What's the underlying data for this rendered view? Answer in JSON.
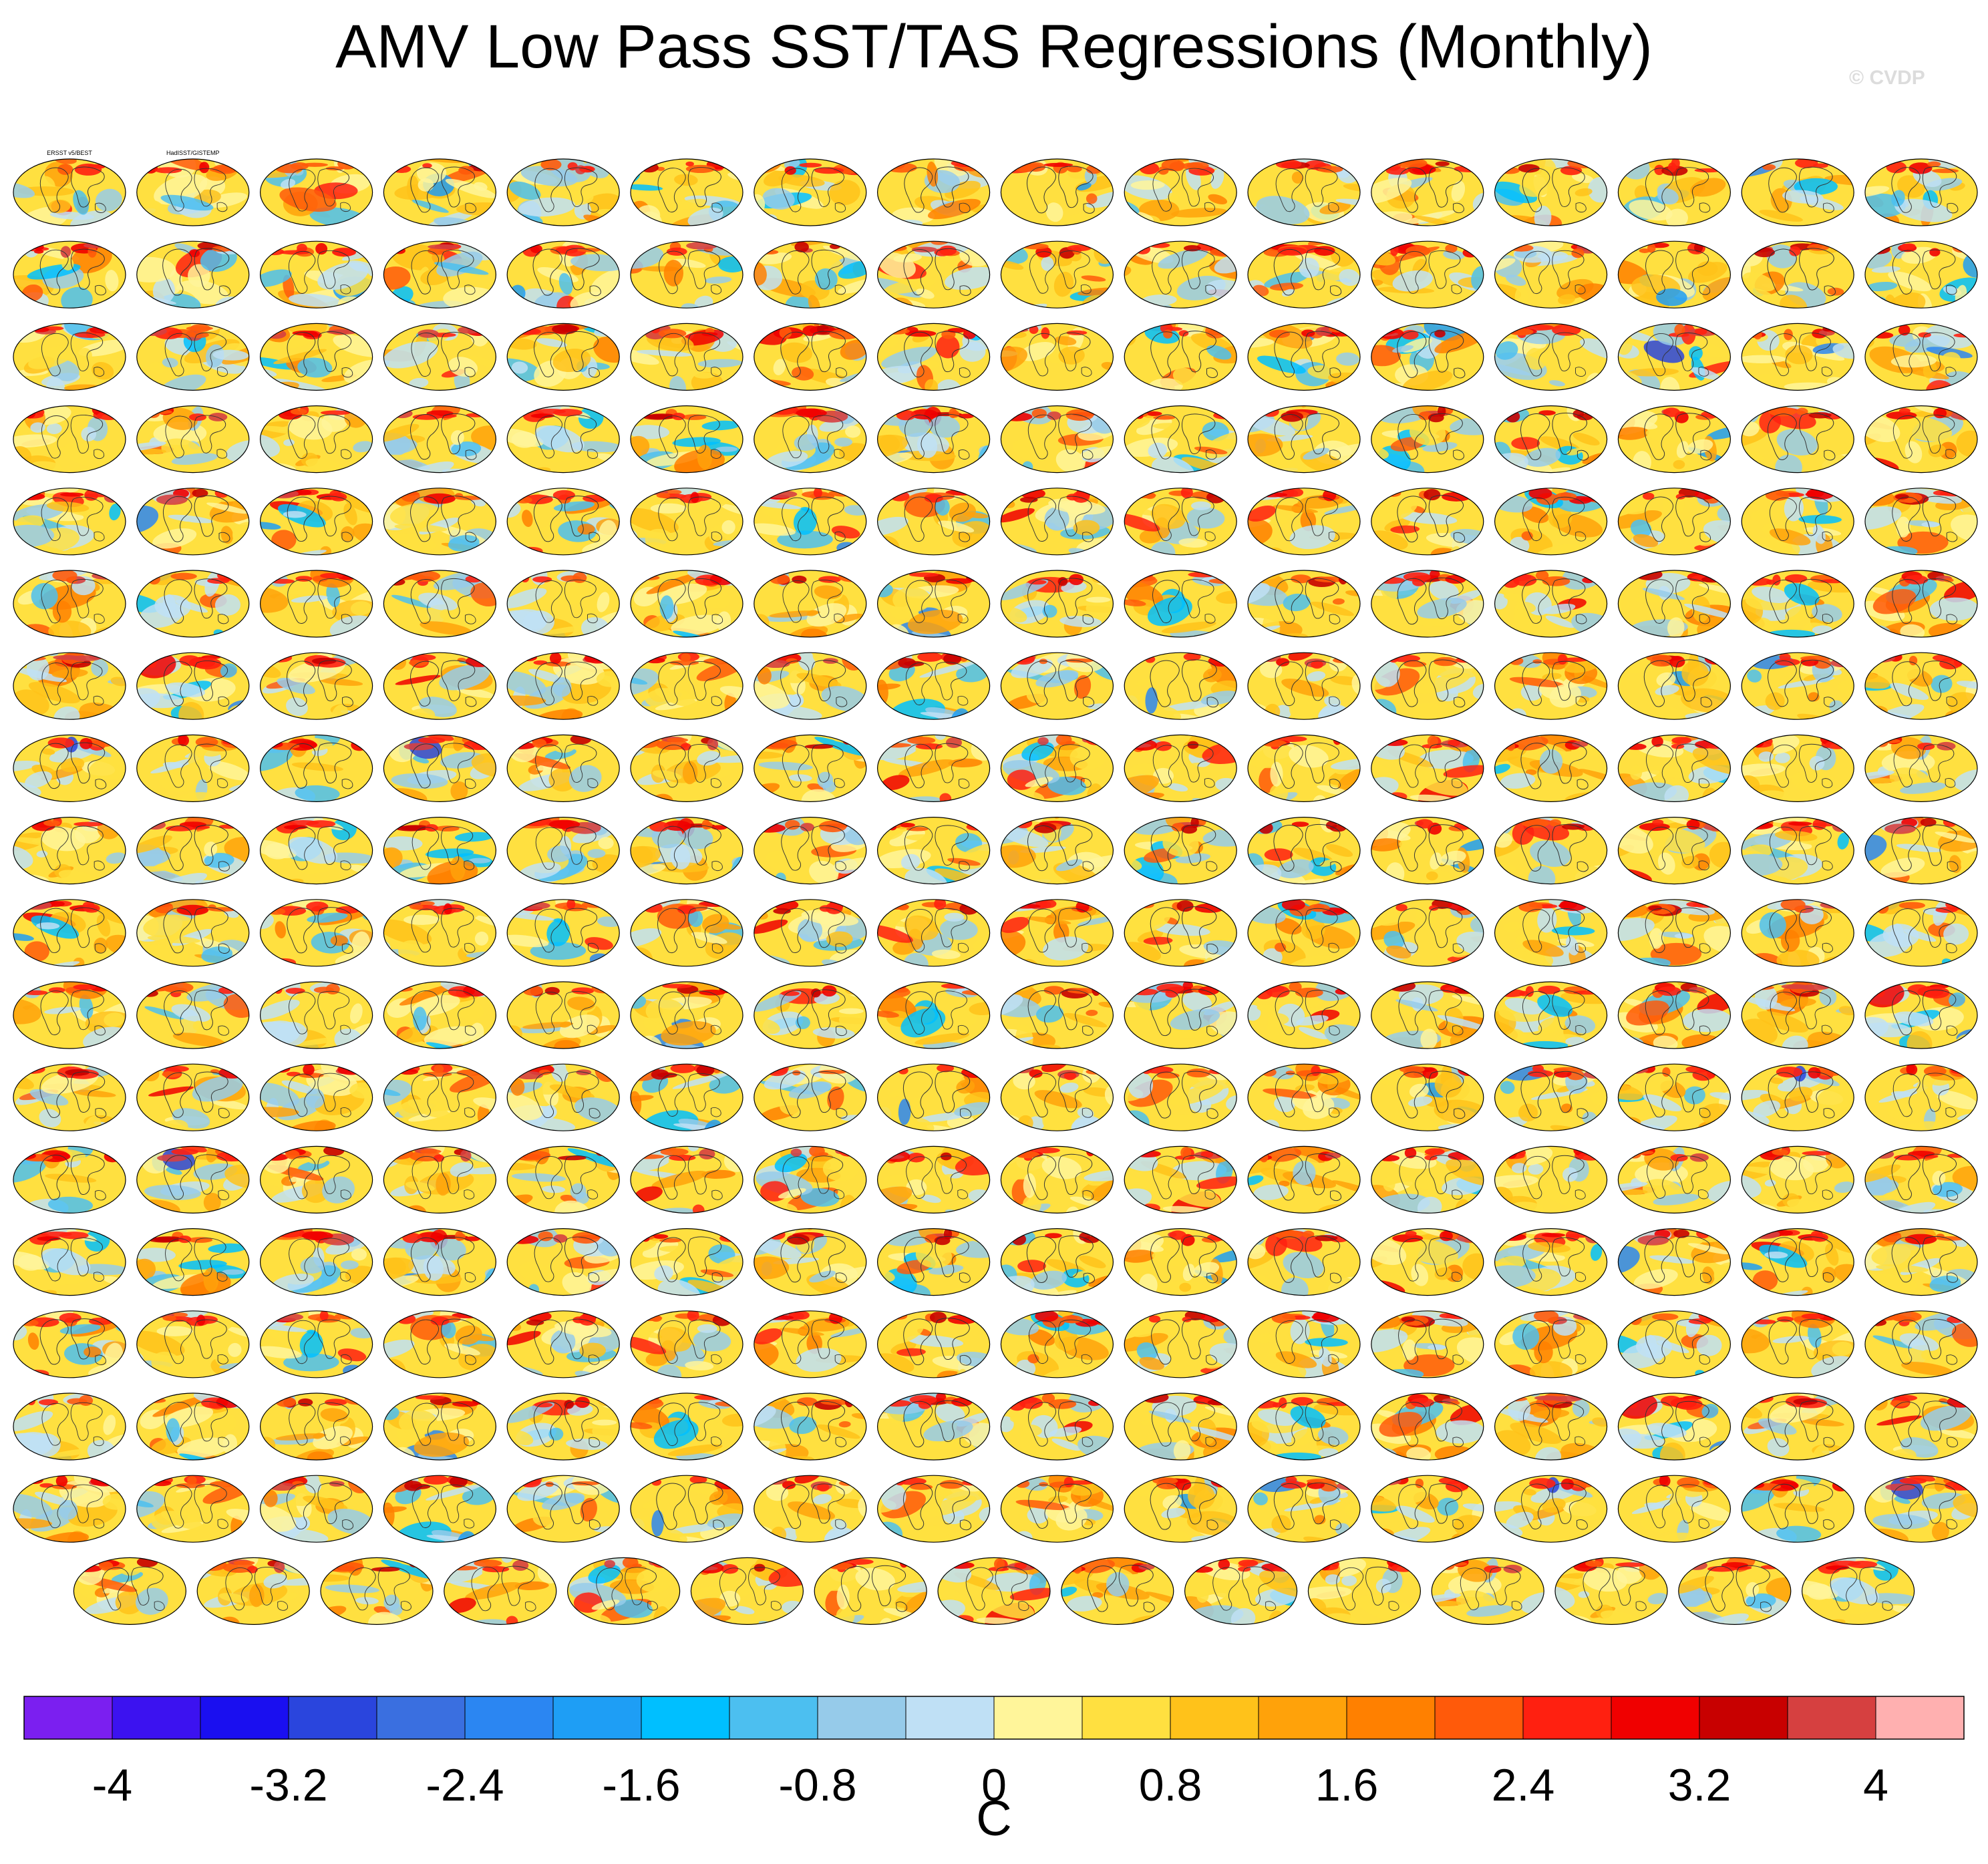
{
  "title": "AMV Low Pass SST/TAS Regressions (Monthly)",
  "watermark": "© CVDP",
  "chart_data": {
    "type": "heatmap",
    "title": "AMV Low Pass SST/TAS Regressions (Monthly)",
    "layout": "small multiples of global regression maps (16 columns × 17 rows + final row of 15)",
    "rows": 17,
    "columns": 16,
    "last_row_count": 15,
    "panel_titles_visible": [
      "ERSST v5/BEST",
      "HadISST/GISTEMP"
    ],
    "colorbar": {
      "units": "C",
      "tick_labels": [
        "-4",
        "-3.2",
        "-2.4",
        "-1.6",
        "-0.8",
        "0",
        "0.8",
        "1.6",
        "2.4",
        "3.2",
        "4"
      ],
      "range": [
        -4,
        4
      ],
      "colors": [
        "#7b1ff0",
        "#3c12f0",
        "#1a0ff0",
        "#2a45dd",
        "#3a6fe0",
        "#2b86f2",
        "#1e9ef5",
        "#00bfff",
        "#4cbff0",
        "#96cbea",
        "#bfe0f5",
        "#fff59a",
        "#ffe040",
        "#ffc21a",
        "#ffa20a",
        "#ff8000",
        "#ff5a0a",
        "#ff2010",
        "#f00000",
        "#c80000",
        "#d64040",
        "#ffb0b0"
      ]
    }
  }
}
